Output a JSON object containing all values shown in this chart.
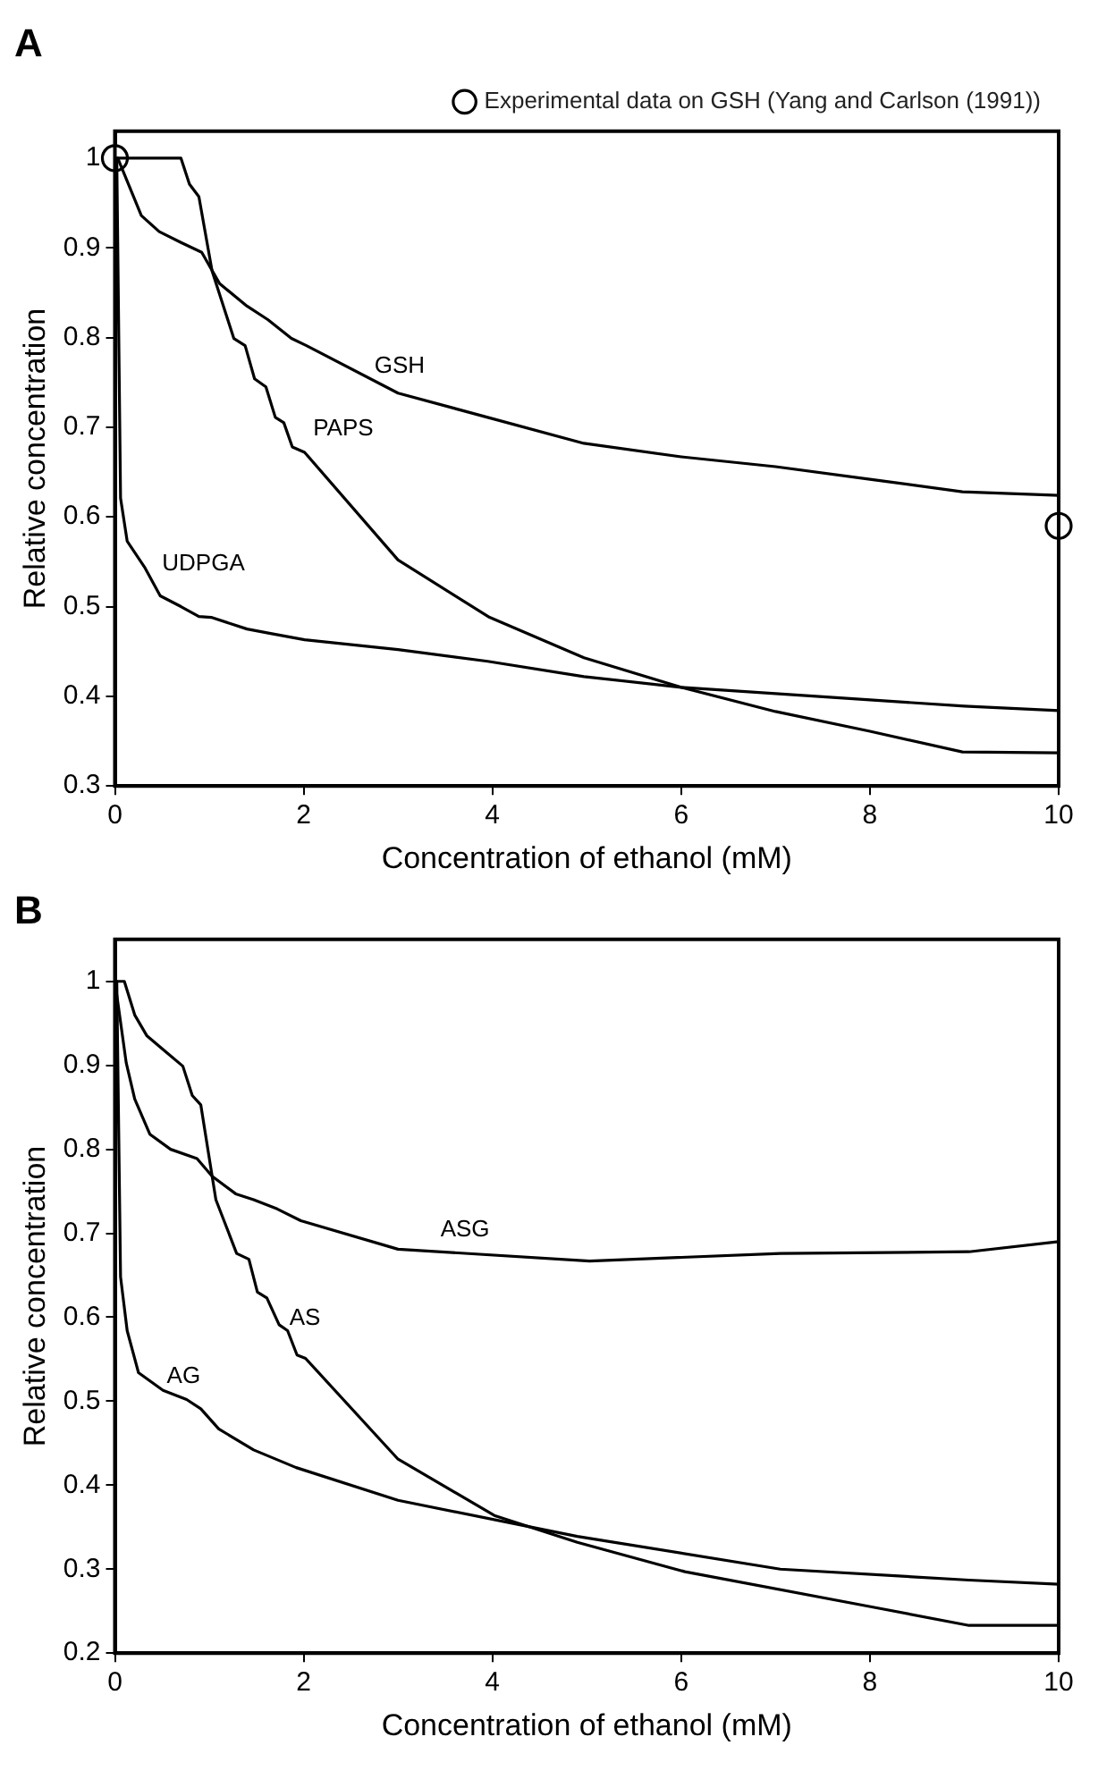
{
  "chart_data": [
    {
      "type": "line",
      "title": "A",
      "xlabel": "Concentration of ethanol (mM)",
      "ylabel": "Relative concentration",
      "xlim": [
        0,
        10
      ],
      "ylim": [
        0.3,
        1.03
      ],
      "xticks": [
        0,
        2,
        4,
        6,
        8,
        10
      ],
      "yticks": [
        0.3,
        0.4,
        0.5,
        0.6,
        0.7,
        0.8,
        0.9,
        1
      ],
      "grid": false,
      "legend": "top right",
      "marker": "none",
      "line_style": "solid",
      "series": [
        {
          "name": "GSH",
          "color": "#000000",
          "x": [
            0,
            0.03,
            0.21,
            0.28,
            0.47,
            0.7,
            0.92,
            1.11,
            1.4,
            1.62,
            1.87,
            2.03,
            3,
            3.95,
            4.97,
            6,
            7,
            8,
            8.98,
            10
          ],
          "values": [
            1,
            1,
            0.954,
            0.936,
            0.918,
            0.906,
            0.895,
            0.86,
            0.835,
            0.82,
            0.799,
            0.791,
            0.738,
            0.711,
            0.682,
            0.667,
            0.656,
            0.642,
            0.628,
            0.624
          ]
        },
        {
          "name": "PAPS",
          "color": "#000000",
          "x": [
            0,
            0.7,
            0.79,
            0.89,
            1.03,
            1.26,
            1.38,
            1.48,
            1.6,
            1.7,
            1.79,
            1.88,
            2.01,
            3,
            3.97,
            4.97,
            6,
            7,
            8,
            8.98,
            10
          ],
          "values": [
            1,
            1,
            0.971,
            0.957,
            0.874,
            0.799,
            0.791,
            0.754,
            0.745,
            0.711,
            0.705,
            0.678,
            0.672,
            0.552,
            0.488,
            0.443,
            0.41,
            0.383,
            0.361,
            0.338,
            0.337
          ]
        },
        {
          "name": "UDPGA",
          "color": "#000000",
          "x": [
            0,
            0.02,
            0.06,
            0.13,
            0.32,
            0.48,
            0.7,
            0.89,
            1.02,
            1.4,
            1.65,
            2.01,
            3,
            3.95,
            4.97,
            6,
            8,
            9,
            10
          ],
          "values": [
            1,
            1,
            0.621,
            0.573,
            0.543,
            0.512,
            0.5,
            0.489,
            0.488,
            0.475,
            0.47,
            0.463,
            0.452,
            0.439,
            0.422,
            0.41,
            0.396,
            0.389,
            0.384
          ]
        },
        {
          "name": "Experimental data on GSH (Yang and Carlson (1991))",
          "type": "scatter",
          "marker": "circle",
          "color": "#000000",
          "x": [
            0,
            10
          ],
          "values": [
            1,
            0.59
          ]
        }
      ]
    },
    {
      "type": "line",
      "title": "B",
      "xlabel": "Concentration of ethanol (mM)",
      "ylabel": "Relative concentration",
      "xlim": [
        0,
        10
      ],
      "ylim": [
        0.2,
        1.05
      ],
      "xticks": [
        0,
        2,
        4,
        6,
        8,
        10
      ],
      "yticks": [
        0.2,
        0.3,
        0.4,
        0.5,
        0.6,
        0.7,
        0.8,
        0.9,
        1
      ],
      "grid": false,
      "marker": "none",
      "line_style": "solid",
      "series": [
        {
          "name": "ASG",
          "color": "#000000",
          "x": [
            0,
            0.12,
            0.21,
            0.37,
            0.59,
            0.87,
            1.03,
            1.28,
            1.47,
            1.72,
            1.97,
            3,
            5.03,
            7.05,
            9.05,
            10
          ],
          "values": [
            1,
            0.903,
            0.86,
            0.818,
            0.8,
            0.789,
            0.768,
            0.747,
            0.74,
            0.729,
            0.715,
            0.681,
            0.667,
            0.676,
            0.678,
            0.69
          ]
        },
        {
          "name": "AS",
          "color": "#000000",
          "x": [
            0,
            0.1,
            0.21,
            0.34,
            0.53,
            0.72,
            0.82,
            0.91,
            1.07,
            1.29,
            1.42,
            1.51,
            1.61,
            1.74,
            1.83,
            1.93,
            2.02,
            3,
            4.02,
            4.9,
            6.04,
            8.07,
            9.05,
            10
          ],
          "values": [
            1,
            1,
            0.96,
            0.935,
            0.917,
            0.899,
            0.864,
            0.853,
            0.74,
            0.676,
            0.669,
            0.63,
            0.623,
            0.591,
            0.584,
            0.555,
            0.551,
            0.431,
            0.364,
            0.332,
            0.297,
            0.254,
            0.233,
            0.233
          ]
        },
        {
          "name": "AG",
          "color": "#000000",
          "x": [
            0,
            0.02,
            0.06,
            0.13,
            0.25,
            0.51,
            0.76,
            0.91,
            1.1,
            1.47,
            1.92,
            3,
            4.9,
            7.05,
            9.05,
            10
          ],
          "values": [
            1,
            1,
            0.648,
            0.584,
            0.534,
            0.513,
            0.502,
            0.491,
            0.467,
            0.442,
            0.421,
            0.382,
            0.339,
            0.3,
            0.287,
            0.282
          ]
        }
      ]
    }
  ]
}
